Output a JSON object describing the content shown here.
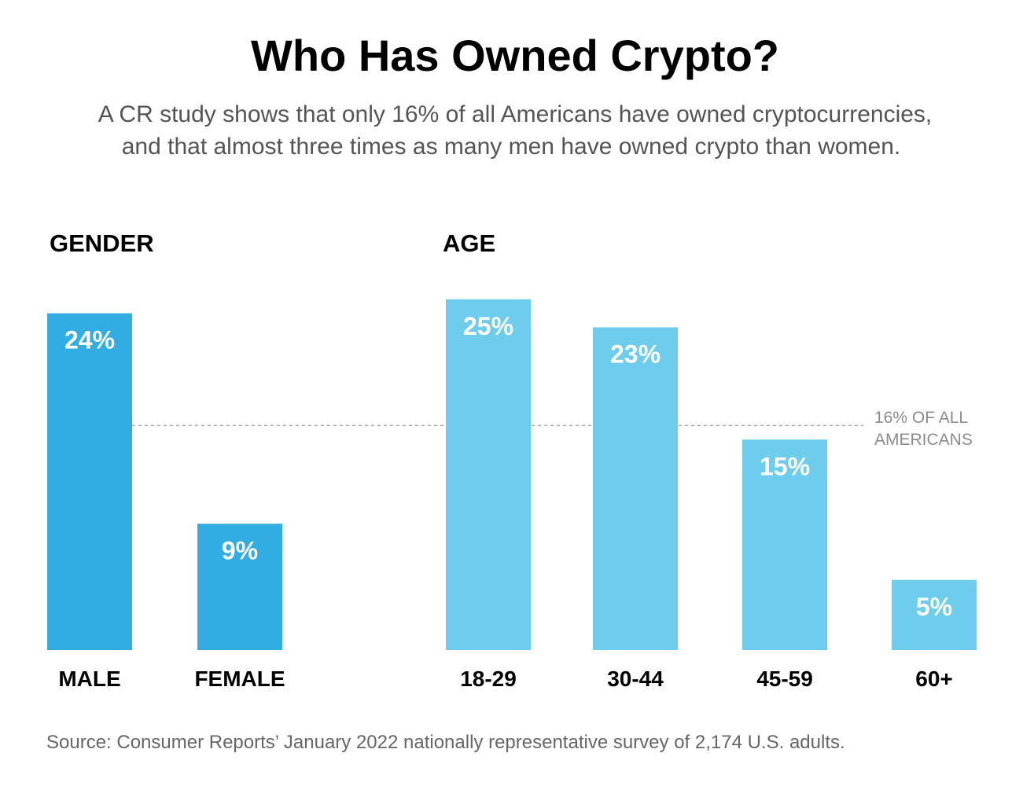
{
  "chart_data": {
    "type": "bar",
    "title": "Who Has Owned Crypto?",
    "subtitle_lines": [
      "A CR study shows that only 16% of all Americans have owned cryptocurrencies,",
      "and that almost three times as many men have owned crypto than women."
    ],
    "unit": "%",
    "ylim": [
      0,
      25
    ],
    "grid": false,
    "reference_line": {
      "value": 16,
      "label_lines": [
        "16% OF ALL",
        "AMERICANS"
      ]
    },
    "groups": [
      {
        "heading": "GENDER",
        "color": "#31ade3",
        "categories": [
          "MALE",
          "FEMALE"
        ],
        "values": [
          24,
          9
        ],
        "labels": [
          "24%",
          "9%"
        ]
      },
      {
        "heading": "AGE",
        "color": "#6ecdec",
        "categories": [
          "18-29",
          "30-44",
          "45-59",
          "60+"
        ],
        "values": [
          25,
          23,
          15,
          5
        ],
        "labels": [
          "25%",
          "23%",
          "15%",
          "5%"
        ]
      }
    ],
    "source": "Source: Consumer Reports’ January 2022 nationally representative survey of 2,174 U.S. adults."
  }
}
